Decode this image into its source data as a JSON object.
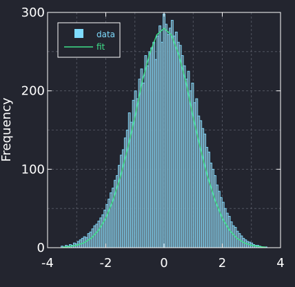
{
  "chart_data": {
    "type": "bar",
    "title": "",
    "xlabel": "",
    "ylabel": "Frequency",
    "xlim": [
      -4,
      4
    ],
    "ylim": [
      0,
      300
    ],
    "xticks": [
      -4,
      -2,
      0,
      2,
      4
    ],
    "yticks": [
      0,
      100,
      200,
      300
    ],
    "grid": true,
    "legend_position": "top-left",
    "series": [
      {
        "name": "data",
        "kind": "histogram",
        "bin_width": 0.07,
        "x": [
          -3.5,
          -3.43,
          -3.36,
          -3.29,
          -3.22,
          -3.15,
          -3.08,
          -3.01,
          -2.94,
          -2.87,
          -2.8,
          -2.73,
          -2.66,
          -2.59,
          -2.52,
          -2.45,
          -2.38,
          -2.31,
          -2.24,
          -2.17,
          -2.1,
          -2.03,
          -1.96,
          -1.89,
          -1.82,
          -1.75,
          -1.68,
          -1.61,
          -1.54,
          -1.47,
          -1.4,
          -1.33,
          -1.26,
          -1.19,
          -1.12,
          -1.05,
          -0.98,
          -0.91,
          -0.84,
          -0.77,
          -0.7,
          -0.63,
          -0.56,
          -0.49,
          -0.42,
          -0.35,
          -0.28,
          -0.21,
          -0.14,
          -0.07,
          0.0,
          0.07,
          0.14,
          0.21,
          0.28,
          0.35,
          0.42,
          0.49,
          0.56,
          0.63,
          0.7,
          0.77,
          0.84,
          0.91,
          0.98,
          1.05,
          1.12,
          1.19,
          1.26,
          1.33,
          1.4,
          1.47,
          1.54,
          1.61,
          1.68,
          1.75,
          1.82,
          1.89,
          1.96,
          2.03,
          2.1,
          2.17,
          2.24,
          2.31,
          2.38,
          2.45,
          2.52,
          2.59,
          2.66,
          2.73,
          2.8,
          2.87,
          2.94,
          3.01,
          3.08,
          3.15,
          3.22,
          3.29,
          3.36,
          3.43,
          3.5
        ],
        "values": [
          2,
          1,
          3,
          2,
          4,
          3,
          6,
          5,
          8,
          10,
          12,
          14,
          13,
          18,
          20,
          24,
          28,
          30,
          34,
          38,
          42,
          48,
          55,
          62,
          70,
          76,
          86,
          92,
          105,
          118,
          125,
          140,
          150,
          172,
          160,
          188,
          200,
          190,
          215,
          228,
          210,
          245,
          232,
          250,
          255,
          262,
          240,
          270,
          283,
          262,
          298,
          285,
          272,
          280,
          290,
          270,
          275,
          262,
          258,
          245,
          232,
          215,
          225,
          200,
          210,
          185,
          190,
          168,
          162,
          152,
          145,
          128,
          122,
          108,
          100,
          92,
          80,
          72,
          64,
          58,
          50,
          44,
          40,
          33,
          28,
          26,
          21,
          18,
          15,
          12,
          10,
          8,
          7,
          6,
          4,
          3,
          3,
          2,
          1,
          1,
          1
        ],
        "color": "#7fdcff"
      },
      {
        "name": "fit",
        "kind": "line",
        "x": [
          -3.5,
          -3.25,
          -3.0,
          -2.75,
          -2.5,
          -2.25,
          -2.0,
          -1.75,
          -1.5,
          -1.25,
          -1.0,
          -0.75,
          -0.5,
          -0.25,
          0.0,
          0.25,
          0.5,
          0.75,
          1.0,
          1.25,
          1.5,
          1.75,
          2.0,
          2.25,
          2.5,
          2.75,
          3.0,
          3.25,
          3.5
        ],
        "y": [
          0.6,
          1.5,
          3.1,
          6.2,
          12.1,
          22.1,
          37.6,
          60.6,
          90.2,
          126.4,
          166.5,
          211.6,
          246.6,
          271.4,
          279.8,
          271.4,
          246.6,
          211.6,
          166.5,
          126.4,
          90.2,
          60.6,
          37.6,
          22.1,
          12.1,
          6.2,
          3.1,
          1.5,
          0.6
        ],
        "color": "#3fe08a"
      }
    ]
  }
}
